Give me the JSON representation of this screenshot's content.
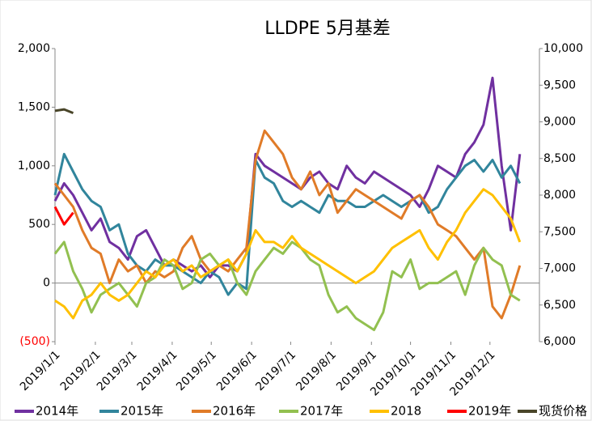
{
  "chart_data": {
    "type": "line",
    "title": "LLDPE  5月基差",
    "x": [
      0,
      7,
      14,
      21,
      28,
      35,
      42,
      49,
      56,
      63,
      70,
      77,
      84,
      91,
      98,
      105,
      112,
      119,
      126,
      133,
      140,
      147,
      154,
      161,
      168,
      175,
      182,
      189,
      196,
      203,
      210,
      217,
      224,
      231,
      238,
      245,
      252,
      259,
      266,
      273,
      280,
      287,
      294,
      301,
      308,
      315,
      322,
      329,
      336,
      343,
      350,
      357
    ],
    "xlim": [
      0,
      372
    ],
    "xticks": [
      {
        "value": 0,
        "label": "2019/1/1"
      },
      {
        "value": 31,
        "label": "2019/2/1"
      },
      {
        "value": 59,
        "label": "2019/3/1"
      },
      {
        "value": 90,
        "label": "2019/4/1"
      },
      {
        "value": 120,
        "label": "2019/5/1"
      },
      {
        "value": 151,
        "label": "2019/6/1"
      },
      {
        "value": 181,
        "label": "2019/7/1"
      },
      {
        "value": 212,
        "label": "2019/8/1"
      },
      {
        "value": 243,
        "label": "2019/9/1"
      },
      {
        "value": 273,
        "label": "2019/10/1"
      },
      {
        "value": 304,
        "label": "2019/11/1"
      },
      {
        "value": 334,
        "label": "2019/12/1"
      }
    ],
    "ylim": [
      -500,
      2000
    ],
    "yticks": [
      {
        "value": -500,
        "label": "(500)",
        "color": "#ff0000"
      },
      0,
      500,
      {
        "value": 1000,
        "label": "1,000"
      },
      {
        "value": 1500,
        "label": "1,500"
      },
      {
        "value": 2000,
        "label": "2,000"
      }
    ],
    "y2lim": [
      6000,
      10000
    ],
    "y2ticks": [
      {
        "value": 6000,
        "label": "6,000"
      },
      {
        "value": 6500,
        "label": "6,500"
      },
      {
        "value": 7000,
        "label": "7,000"
      },
      {
        "value": 7500,
        "label": "7,500"
      },
      {
        "value": 8000,
        "label": "8,000"
      },
      {
        "value": 8500,
        "label": "8,500"
      },
      {
        "value": 9000,
        "label": "9,000"
      },
      {
        "value": 9500,
        "label": "9,500"
      },
      {
        "value": 10000,
        "label": "10,000"
      }
    ],
    "series": [
      {
        "name": "2014年",
        "color": "#7030a0",
        "values": [
          700,
          850,
          750,
          600,
          450,
          550,
          350,
          300,
          200,
          400,
          450,
          300,
          150,
          200,
          150,
          100,
          150,
          50,
          150,
          150,
          100,
          250,
          1100,
          1000,
          950,
          900,
          850,
          800,
          900,
          950,
          850,
          800,
          1000,
          900,
          850,
          950,
          900,
          850,
          800,
          750,
          650,
          800,
          1000,
          950,
          900,
          1100,
          1200,
          1350,
          1750,
          1000,
          450,
          1100
        ]
      },
      {
        "name": "2015年",
        "color": "#31859c",
        "values": [
          750,
          1100,
          950,
          800,
          700,
          650,
          450,
          500,
          250,
          150,
          100,
          200,
          150,
          150,
          100,
          50,
          0,
          100,
          50,
          -100,
          0,
          -50,
          1050,
          900,
          850,
          700,
          650,
          700,
          650,
          600,
          750,
          700,
          700,
          650,
          650,
          700,
          750,
          700,
          650,
          700,
          750,
          600,
          650,
          800,
          900,
          1000,
          1050,
          950,
          1050,
          900,
          1000,
          850
        ]
      },
      {
        "name": "2016年",
        "color": "#e07b28",
        "values": [
          850,
          750,
          650,
          450,
          300,
          250,
          0,
          200,
          100,
          150,
          0,
          100,
          50,
          100,
          300,
          400,
          200,
          100,
          150,
          100,
          200,
          300,
          1050,
          1300,
          1200,
          1100,
          900,
          800,
          950,
          750,
          850,
          600,
          700,
          800,
          750,
          700,
          650,
          600,
          550,
          700,
          750,
          650,
          500,
          450,
          400,
          300,
          200,
          300,
          -200,
          -300,
          -100,
          150
        ]
      },
      {
        "name": "2017年",
        "color": "#92c050",
        "values": [
          250,
          350,
          100,
          -50,
          -250,
          -100,
          -50,
          0,
          -100,
          -200,
          0,
          50,
          200,
          150,
          -50,
          0,
          200,
          250,
          150,
          200,
          0,
          -100,
          100,
          200,
          300,
          250,
          350,
          300,
          200,
          150,
          -100,
          -250,
          -200,
          -300,
          -350,
          -400,
          -250,
          100,
          50,
          200,
          -50,
          0,
          0,
          50,
          100,
          -100,
          150,
          300,
          200,
          150,
          -100,
          -150
        ]
      },
      {
        "name": "2018",
        "color": "#ffc000",
        "values": [
          -150,
          -200,
          -300,
          -150,
          -100,
          0,
          -100,
          -150,
          -100,
          0,
          100,
          50,
          150,
          200,
          100,
          150,
          50,
          100,
          150,
          200,
          100,
          250,
          450,
          350,
          350,
          300,
          400,
          300,
          250,
          200,
          150,
          100,
          50,
          0,
          50,
          100,
          200,
          300,
          350,
          400,
          450,
          300,
          200,
          350,
          450,
          600,
          700,
          800,
          750,
          650,
          550,
          350
        ]
      },
      {
        "name": "2019年",
        "color": "#ff0000",
        "values": [
          650,
          500,
          600,
          null,
          null,
          null,
          null,
          null,
          null,
          null,
          null,
          null,
          null,
          null,
          null,
          null,
          null,
          null,
          null,
          null,
          null,
          null,
          null,
          null,
          null,
          null,
          null,
          null,
          null,
          null,
          null,
          null,
          null,
          null,
          null,
          null,
          null,
          null,
          null,
          null,
          null,
          null,
          null,
          null,
          null,
          null,
          null,
          null,
          null,
          null,
          null,
          null
        ]
      },
      {
        "name": "现货价格",
        "color": "#494529",
        "axis": "y2",
        "values": [
          9150,
          9170,
          9120,
          null,
          null,
          null,
          null,
          null,
          null,
          null,
          null,
          null,
          null,
          null,
          null,
          null,
          null,
          null,
          null,
          null,
          null,
          null,
          null,
          null,
          null,
          null,
          null,
          null,
          null,
          null,
          null,
          null,
          null,
          null,
          null,
          null,
          null,
          null,
          null,
          null,
          null,
          null,
          null,
          null,
          null,
          null,
          null,
          null,
          null,
          null,
          null,
          null
        ]
      }
    ]
  }
}
